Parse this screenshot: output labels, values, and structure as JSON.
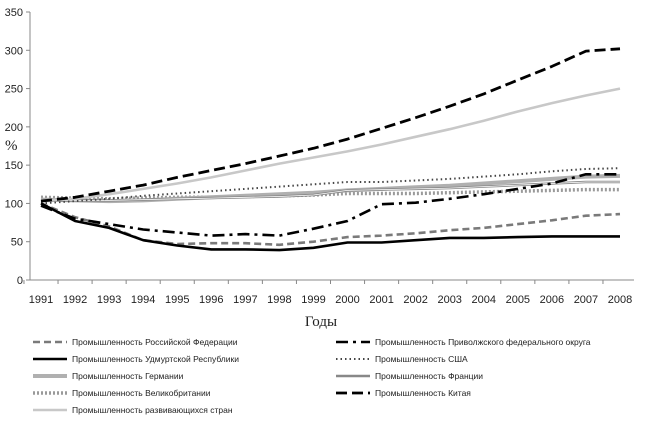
{
  "chart_data": {
    "type": "line",
    "xlabel": "Годы",
    "ylabel": "%",
    "x": [
      "1991",
      "1992",
      "1993",
      "1994",
      "1995",
      "1996",
      "1997",
      "1998",
      "1999",
      "2000",
      "2001",
      "2002",
      "2003",
      "2004",
      "2005",
      "2006",
      "2007",
      "2008"
    ],
    "ylim": [
      0,
      350
    ],
    "yticks": [
      0,
      50,
      100,
      150,
      200,
      250,
      300,
      350
    ],
    "grid": false,
    "legend": "bottom",
    "series": [
      {
        "name": "Промышленность Российской Федерации",
        "style": "dash",
        "color": "#7a7a7a",
        "values": [
          100,
          82,
          70,
          52,
          47,
          48,
          48,
          46,
          50,
          56,
          58,
          61,
          65,
          68,
          73,
          78,
          84,
          86
        ]
      },
      {
        "name": "Промышленность Приволжского федерального округа",
        "style": "dashdot",
        "color": "#000000",
        "values": [
          97,
          80,
          73,
          66,
          62,
          58,
          60,
          58,
          67,
          77,
          99,
          101,
          106,
          112,
          119,
          126,
          138,
          138
        ]
      },
      {
        "name": "Промышленность Удмуртской Республики",
        "style": "solid",
        "color": "#000000",
        "values": [
          100,
          77,
          68,
          52,
          45,
          40,
          40,
          39,
          42,
          49,
          49,
          52,
          55,
          55,
          56,
          57,
          57,
          57
        ]
      },
      {
        "name": "Промышленность США",
        "style": "dot",
        "color": "#444444",
        "values": [
          100,
          103,
          106,
          110,
          113,
          116,
          119,
          122,
          125,
          128,
          128,
          130,
          132,
          135,
          138,
          142,
          145,
          146
        ]
      },
      {
        "name": "Промышленность Германии",
        "style": "solid-thick-light",
        "color": "#b0b0b0",
        "values": [
          105,
          104,
          103,
          104,
          106,
          108,
          110,
          112,
          114,
          117,
          119,
          121,
          123,
          126,
          129,
          132,
          135,
          136
        ]
      },
      {
        "name": "Промышленность Франции",
        "style": "solid-double",
        "color": "#888888",
        "values": [
          103,
          104,
          104,
          105,
          106,
          107,
          108,
          109,
          111,
          117,
          118,
          119,
          120,
          122,
          124,
          126,
          128,
          128
        ]
      },
      {
        "name": "Промышленность Великобритании",
        "style": "dashed-light",
        "color": "#9a9a9a",
        "values": [
          108,
          107,
          106,
          107,
          108,
          108,
          109,
          110,
          111,
          113,
          113,
          113,
          114,
          115,
          116,
          117,
          118,
          118
        ]
      },
      {
        "name": "Промышленность Китая",
        "style": "longdash",
        "color": "#000000",
        "values": [
          103,
          108,
          116,
          124,
          134,
          143,
          152,
          162,
          172,
          184,
          198,
          212,
          227,
          243,
          261,
          279,
          299,
          302
        ]
      },
      {
        "name": "Промышленность развивающихся стран",
        "style": "solid-light",
        "color": "#c8c8c8",
        "values": [
          103,
          106,
          112,
          119,
          126,
          134,
          143,
          152,
          160,
          168,
          177,
          187,
          197,
          208,
          220,
          231,
          241,
          250
        ]
      }
    ]
  }
}
